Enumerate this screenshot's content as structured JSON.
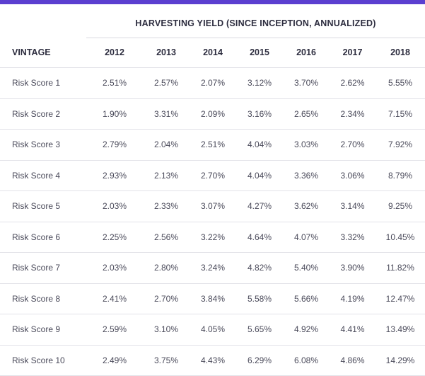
{
  "title": "HARVESTING YIELD (SINCE INCEPTION, ANNUALIZED)",
  "colors": {
    "accent": "#5b3fd0"
  },
  "columns": [
    "VINTAGE",
    "2012",
    "2013",
    "2014",
    "2015",
    "2016",
    "2017",
    "2018"
  ],
  "rows": [
    [
      "Risk Score 1",
      "2.51%",
      "2.57%",
      "2.07%",
      "3.12%",
      "3.70%",
      "2.62%",
      "5.55%"
    ],
    [
      "Risk Score 2",
      "1.90%",
      "3.31%",
      "2.09%",
      "3.16%",
      "2.65%",
      "2.34%",
      "7.15%"
    ],
    [
      "Risk Score 3",
      "2.79%",
      "2.04%",
      "2.51%",
      "4.04%",
      "3.03%",
      "2.70%",
      "7.92%"
    ],
    [
      "Risk Score 4",
      "2.93%",
      "2.13%",
      "2.70%",
      "4.04%",
      "3.36%",
      "3.06%",
      "8.79%"
    ],
    [
      "Risk Score 5",
      "2.03%",
      "2.33%",
      "3.07%",
      "4.27%",
      "3.62%",
      "3.14%",
      "9.25%"
    ],
    [
      "Risk Score 6",
      "2.25%",
      "2.56%",
      "3.22%",
      "4.64%",
      "4.07%",
      "3.32%",
      "10.45%"
    ],
    [
      "Risk Score 7",
      "2.03%",
      "2.80%",
      "3.24%",
      "4.82%",
      "5.40%",
      "3.90%",
      "11.82%"
    ],
    [
      "Risk Score 8",
      "2.41%",
      "2.70%",
      "3.84%",
      "5.58%",
      "5.66%",
      "4.19%",
      "12.47%"
    ],
    [
      "Risk Score 9",
      "2.59%",
      "3.10%",
      "4.05%",
      "5.65%",
      "4.92%",
      "4.41%",
      "13.49%"
    ],
    [
      "Risk Score 10",
      "2.49%",
      "3.75%",
      "4.43%",
      "6.29%",
      "6.08%",
      "4.86%",
      "14.29%"
    ]
  ]
}
